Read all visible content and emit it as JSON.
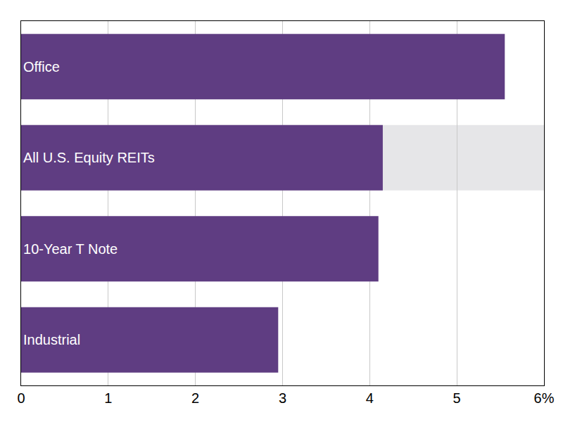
{
  "chart_data": {
    "type": "bar",
    "orientation": "horizontal",
    "categories": [
      "Office",
      "All U.S. Equity REITs",
      "10-Year T Note",
      "Industrial"
    ],
    "values": [
      5.55,
      4.15,
      4.1,
      2.95
    ],
    "color": "#5f3d82",
    "xlim": [
      0,
      6
    ],
    "xticks": [
      0,
      1,
      2,
      3,
      4,
      5,
      {
        "value": 6,
        "label": "6%"
      }
    ],
    "grid": true,
    "tick_labels": "x"
  }
}
